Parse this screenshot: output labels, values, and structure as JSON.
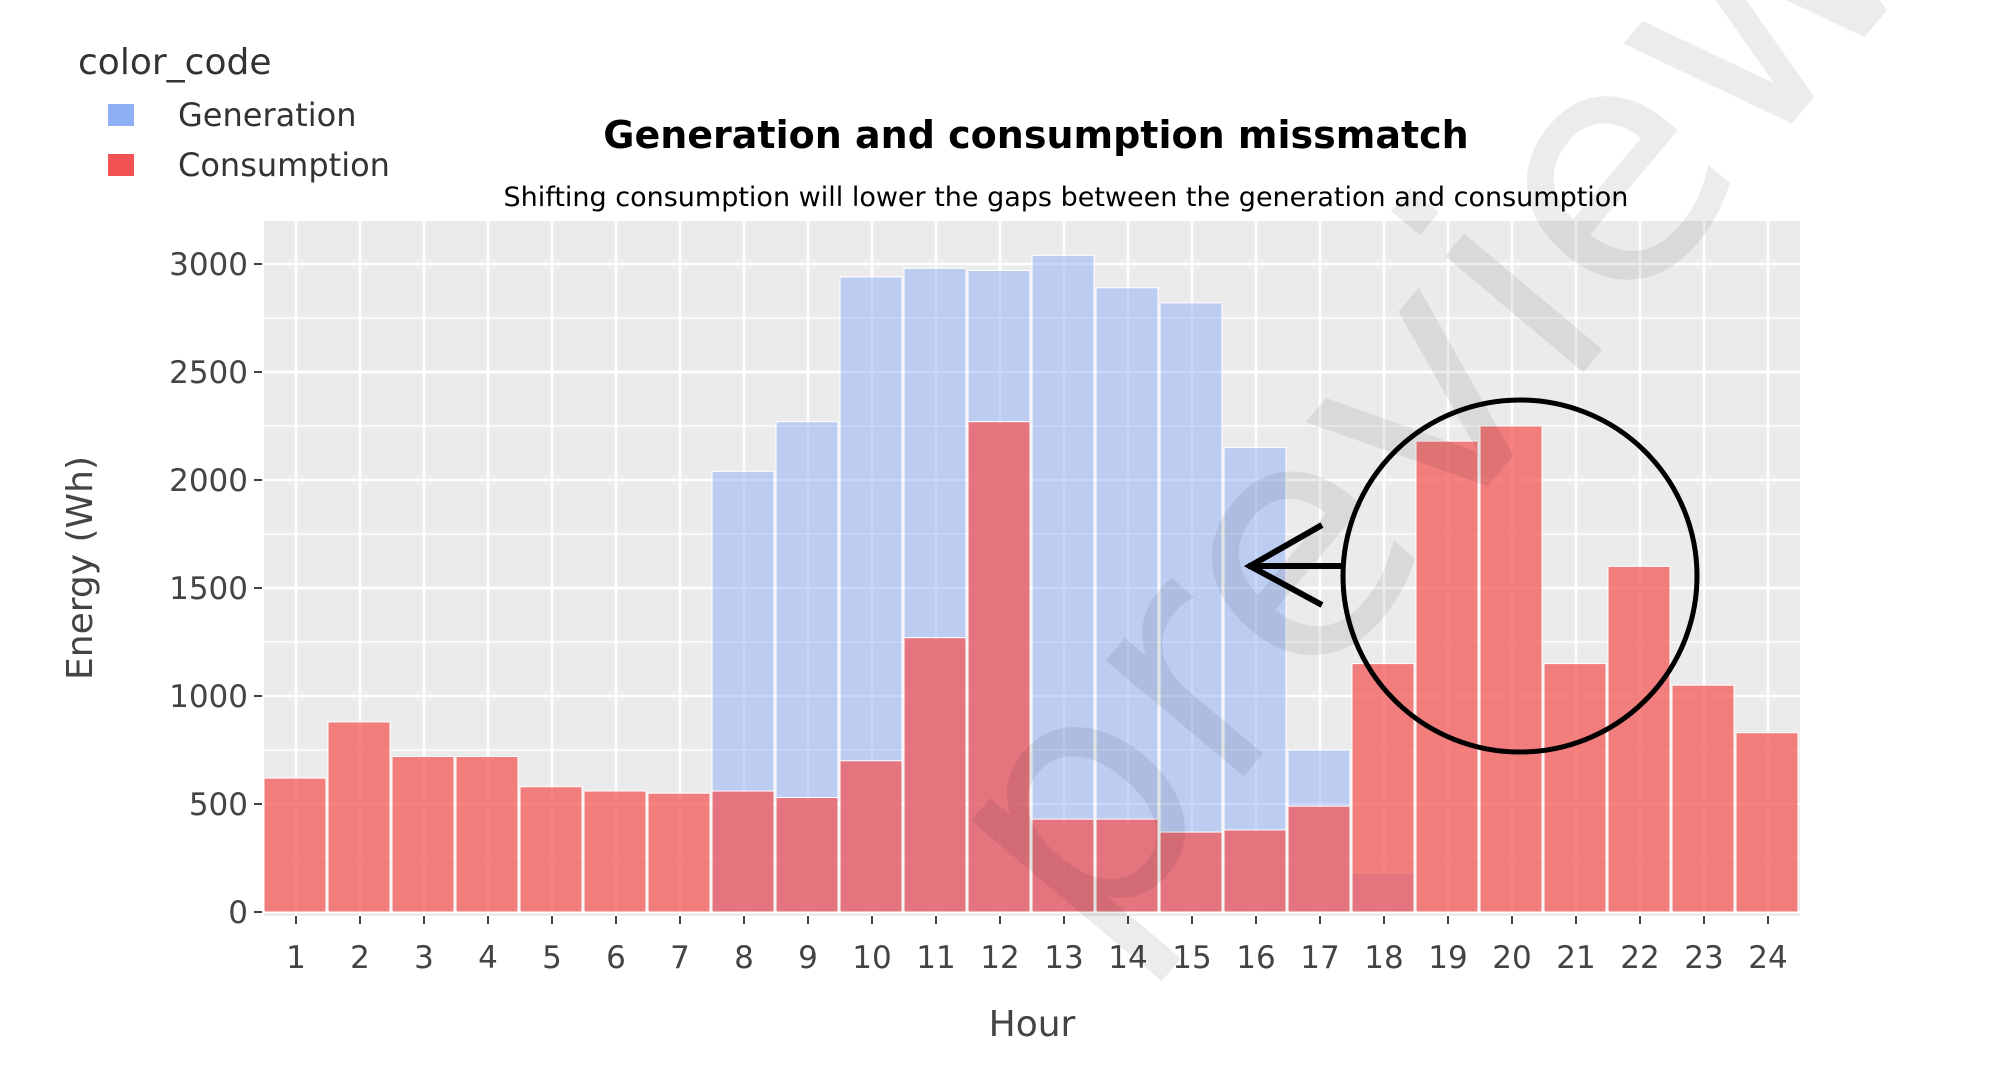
{
  "chart_data": {
    "type": "bar",
    "title": "Generation and consumption missmatch",
    "subtitle": "Shifting consumption will lower the gaps between the generation and consumption",
    "xlabel": "Hour",
    "ylabel": "Energy (Wh)",
    "legend_title": "color_code",
    "legend_position": "top-left",
    "barmode": "overlay",
    "grid": true,
    "ylim": [
      -20,
      3200
    ],
    "yticks": [
      0,
      500,
      1000,
      1500,
      2000,
      2500,
      3000
    ],
    "categories": [
      "1",
      "2",
      "3",
      "4",
      "5",
      "6",
      "7",
      "8",
      "9",
      "10",
      "11",
      "12",
      "13",
      "14",
      "15",
      "16",
      "17",
      "18",
      "19",
      "20",
      "21",
      "22",
      "23",
      "24"
    ],
    "series": [
      {
        "name": "Generation",
        "color": "#8fb0f7",
        "values": [
          0,
          0,
          0,
          0,
          0,
          0,
          0,
          2040,
          2270,
          2940,
          2980,
          2970,
          3040,
          2890,
          2820,
          2150,
          750,
          180,
          0,
          0,
          0,
          0,
          0,
          0
        ]
      },
      {
        "name": "Consumption",
        "color": "#f25252",
        "values": [
          620,
          880,
          720,
          720,
          580,
          560,
          550,
          560,
          530,
          700,
          1270,
          2270,
          430,
          430,
          370,
          380,
          490,
          1150,
          2180,
          2250,
          1150,
          1600,
          1050,
          830
        ]
      }
    ],
    "annotations": [
      {
        "type": "circle",
        "color": "#000000"
      },
      {
        "type": "arrow",
        "direction": "left",
        "color": "#000000"
      }
    ]
  },
  "watermark": "preview"
}
